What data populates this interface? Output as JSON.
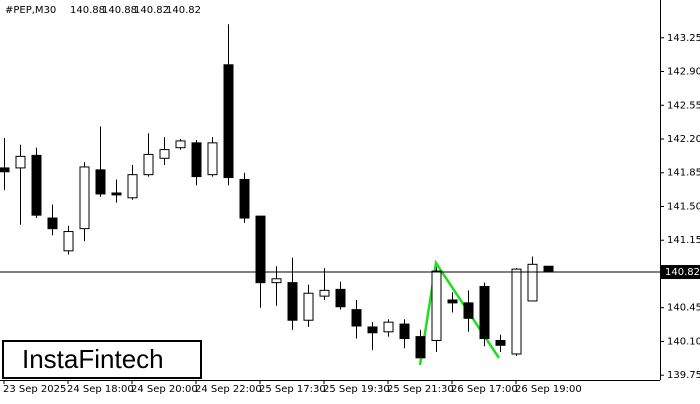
{
  "chart_data": {
    "type": "candlestick",
    "title": "#PEP,M30",
    "watermark": "InstaFintech",
    "categories": [
      "23 Sep 2025",
      null,
      null,
      null,
      "24 Sep 18:00",
      null,
      null,
      null,
      "24 Sep 20:00",
      null,
      null,
      null,
      "24 Sep 22:00",
      null,
      null,
      null,
      "25 Sep 17:30",
      null,
      null,
      null,
      "25 Sep 19:30",
      null,
      null,
      null,
      "25 Sep 21:30",
      null,
      null,
      null,
      "26 Sep 17:00",
      null,
      null,
      null,
      "26 Sep 19:00",
      null,
      null
    ],
    "open": [
      141.9,
      141.9,
      142.03,
      141.38,
      141.04,
      141.27,
      141.88,
      141.64,
      141.59,
      141.83,
      142.0,
      142.11,
      142.16,
      141.83,
      142.97,
      141.78,
      141.4,
      140.71,
      140.71,
      140.32,
      140.57,
      140.64,
      140.43,
      140.25,
      140.2,
      140.28,
      140.15,
      140.11,
      140.53,
      140.5,
      140.67,
      140.11,
      139.97,
      140.52,
      140.88
    ],
    "high": [
      142.21,
      142.14,
      142.11,
      141.52,
      141.3,
      141.96,
      142.33,
      141.78,
      141.93,
      142.26,
      142.22,
      142.2,
      142.19,
      142.22,
      143.39,
      141.85,
      141.4,
      140.88,
      140.97,
      140.69,
      140.86,
      140.72,
      140.53,
      140.3,
      140.33,
      140.33,
      140.22,
      140.87,
      140.61,
      140.63,
      140.71,
      140.17,
      140.86,
      140.98,
      140.88
    ],
    "low": [
      141.67,
      141.31,
      141.38,
      141.2,
      141.0,
      141.14,
      141.6,
      141.54,
      141.57,
      141.81,
      141.93,
      142.09,
      141.72,
      141.81,
      141.72,
      141.33,
      140.45,
      140.47,
      140.22,
      140.25,
      140.53,
      140.43,
      140.13,
      140.01,
      140.15,
      140.03,
      139.93,
      139.99,
      140.4,
      140.2,
      140.05,
      139.99,
      139.95,
      140.52,
      140.82
    ],
    "close": [
      141.86,
      142.02,
      141.41,
      141.27,
      141.24,
      141.91,
      141.63,
      141.62,
      141.83,
      142.04,
      142.09,
      142.18,
      141.81,
      142.16,
      141.8,
      141.38,
      140.71,
      140.75,
      140.32,
      140.6,
      140.63,
      140.46,
      140.26,
      140.19,
      140.3,
      140.13,
      139.93,
      140.83,
      140.5,
      140.34,
      140.13,
      140.06,
      140.85,
      140.9,
      140.82
    ],
    "ylim": [
      139.7,
      143.59
    ],
    "yticks": [
      143.25,
      {
        "value": 142.9,
        "label": "142.90"
      },
      142.55,
      {
        "value": 142.2,
        "label": "142.20"
      },
      141.85,
      {
        "value": 141.5,
        "label": "141.50"
      },
      141.15,
      140.45,
      {
        "value": 140.1,
        "label": "140.10"
      },
      139.75
    ]
  }
}
